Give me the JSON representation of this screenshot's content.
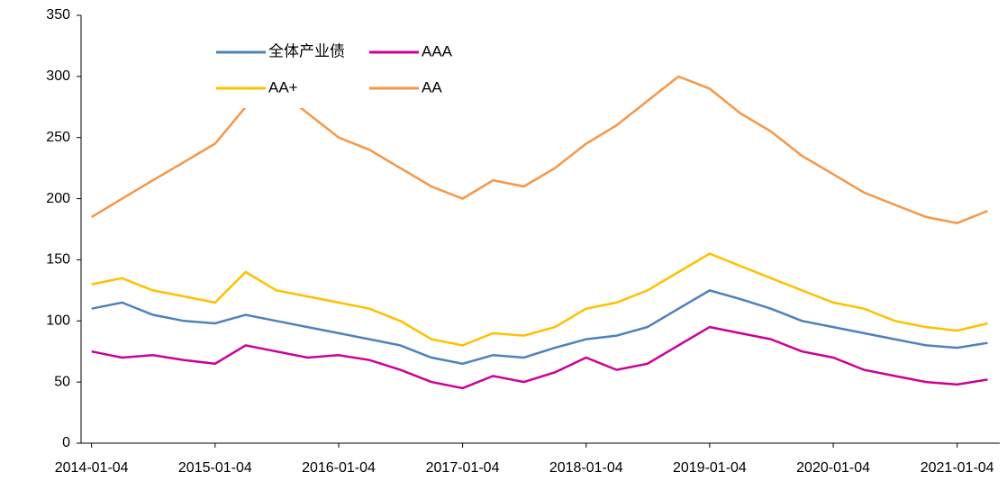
{
  "chart_data": {
    "type": "line",
    "x": [
      "2014-01-04",
      "2014-04-04",
      "2014-07-04",
      "2014-10-04",
      "2015-01-04",
      "2015-04-04",
      "2015-07-04",
      "2015-10-04",
      "2016-01-04",
      "2016-04-04",
      "2016-07-04",
      "2016-10-04",
      "2017-01-04",
      "2017-04-04",
      "2017-07-04",
      "2017-10-04",
      "2018-01-04",
      "2018-04-04",
      "2018-07-04",
      "2018-10-04",
      "2019-01-04",
      "2019-04-04",
      "2019-07-04",
      "2019-10-04",
      "2020-01-04",
      "2020-04-04",
      "2020-07-04",
      "2020-10-04",
      "2021-01-04",
      "2021-04-04"
    ],
    "series": [
      {
        "name": "全体产业债",
        "color": "#4f81bd",
        "values": [
          110,
          115,
          105,
          100,
          98,
          105,
          100,
          95,
          90,
          85,
          80,
          70,
          65,
          72,
          70,
          78,
          85,
          88,
          95,
          110,
          125,
          118,
          110,
          100,
          95,
          90,
          85,
          80,
          78,
          82
        ]
      },
      {
        "name": "AAA",
        "color": "#cc0099",
        "values": [
          75,
          70,
          72,
          68,
          65,
          80,
          75,
          70,
          72,
          68,
          60,
          50,
          45,
          55,
          50,
          58,
          70,
          60,
          65,
          80,
          95,
          90,
          85,
          75,
          70,
          60,
          55,
          50,
          48,
          52
        ]
      },
      {
        "name": "AA+",
        "color": "#ffc000",
        "values": [
          130,
          135,
          125,
          120,
          115,
          140,
          125,
          120,
          115,
          110,
          100,
          85,
          80,
          90,
          88,
          95,
          110,
          115,
          125,
          140,
          155,
          145,
          135,
          125,
          115,
          110,
          100,
          95,
          92,
          98
        ]
      },
      {
        "name": "AA",
        "color": "#f79646",
        "values": [
          185,
          200,
          215,
          230,
          245,
          275,
          290,
          270,
          250,
          240,
          225,
          210,
          200,
          215,
          210,
          225,
          245,
          260,
          280,
          300,
          290,
          270,
          255,
          235,
          220,
          205,
          195,
          185,
          180,
          190
        ]
      }
    ],
    "xticks": [
      "2014-01-04",
      "2015-01-04",
      "2016-01-04",
      "2017-01-04",
      "2018-01-04",
      "2019-01-04",
      "2020-01-04",
      "2021-01-04"
    ],
    "xlim": [
      "2013-12-04",
      "2021-05-10"
    ],
    "ylim": [
      0,
      350
    ],
    "yticks": [
      0,
      50,
      100,
      150,
      200,
      250,
      300,
      350
    ],
    "grid": false,
    "legend": "top-left"
  }
}
